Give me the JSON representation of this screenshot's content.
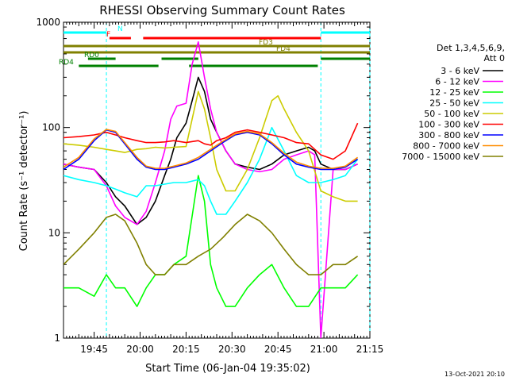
{
  "chart_data": {
    "type": "line",
    "title": "RHESSI Observing Summary Count Rates",
    "xlabel": "Start Time (06-Jan-04 19:35:02)",
    "ylabel": "Count Rate (s⁻¹ detector⁻¹)",
    "ylim": [
      1,
      1000
    ],
    "yscale": "log",
    "xlim_min": [
      0,
      100
    ],
    "x_ticks": [
      {
        "min": 10,
        "label": "19:45"
      },
      {
        "min": 25,
        "label": "20:00"
      },
      {
        "min": 40,
        "label": "20:15"
      },
      {
        "min": 55,
        "label": "20:30"
      },
      {
        "min": 70,
        "label": "20:45"
      },
      {
        "min": 85,
        "label": "21:00"
      },
      {
        "min": 100,
        "label": "21:15"
      }
    ],
    "y_ticks": [
      {
        "value": 1,
        "label": "1"
      },
      {
        "value": 10,
        "label": "10"
      },
      {
        "value": 100,
        "label": "100"
      },
      {
        "value": 1000,
        "label": "1000"
      }
    ],
    "legend_header": [
      "Det 1,3,4,5,6,9,",
      "Att 0"
    ],
    "legend_position": "top-right",
    "series": [
      {
        "name": "3 - 6 keV",
        "color": "#000000",
        "x": [
          0,
          5,
          10,
          14,
          17,
          20,
          24,
          27,
          30,
          33,
          35,
          37,
          40,
          42,
          44,
          46,
          48,
          50,
          53,
          56,
          60,
          64,
          68,
          72,
          76,
          80,
          82,
          84,
          88,
          92,
          96
        ],
        "values": [
          45,
          42,
          40,
          30,
          22,
          18,
          12,
          14,
          20,
          35,
          50,
          80,
          110,
          180,
          300,
          220,
          120,
          90,
          60,
          45,
          42,
          40,
          45,
          55,
          60,
          65,
          60,
          45,
          40,
          40,
          45
        ]
      },
      {
        "name": "6 - 12 keV",
        "color": "#ff00ff",
        "x": [
          0,
          5,
          10,
          14,
          17,
          20,
          24,
          27,
          30,
          33,
          35,
          37,
          40,
          42,
          44,
          46,
          48,
          50,
          53,
          56,
          60,
          64,
          68,
          72,
          76,
          80,
          82,
          84,
          88,
          92,
          96
        ],
        "values": [
          45,
          42,
          40,
          28,
          18,
          14,
          12,
          16,
          30,
          60,
          120,
          160,
          170,
          400,
          650,
          300,
          150,
          90,
          60,
          45,
          40,
          38,
          40,
          50,
          55,
          60,
          55,
          1,
          40,
          40,
          45
        ]
      },
      {
        "name": "12 - 25 keV",
        "color": "#00ff00",
        "x": [
          0,
          5,
          10,
          14,
          17,
          20,
          24,
          27,
          30,
          33,
          36,
          40,
          44,
          46,
          48,
          50,
          53,
          56,
          60,
          64,
          68,
          72,
          76,
          80,
          84,
          88,
          92,
          96
        ],
        "values": [
          3,
          3,
          2.5,
          4,
          3,
          3,
          2,
          3,
          4,
          4,
          5,
          6,
          35,
          20,
          5,
          3,
          2,
          2,
          3,
          4,
          5,
          3,
          2,
          2,
          3,
          3,
          3,
          4
        ]
      },
      {
        "name": "25 - 50 keV",
        "color": "#00ffff",
        "x": [
          0,
          5,
          10,
          14,
          17,
          20,
          24,
          27,
          30,
          33,
          36,
          40,
          44,
          46,
          48,
          50,
          53,
          56,
          60,
          64,
          68,
          72,
          76,
          80,
          84,
          88,
          92,
          96
        ],
        "values": [
          35,
          32,
          30,
          28,
          26,
          24,
          22,
          28,
          28,
          29,
          30,
          30,
          32,
          28,
          20,
          15,
          15,
          20,
          30,
          50,
          100,
          60,
          35,
          30,
          30,
          32,
          35,
          50
        ]
      },
      {
        "name": "50 - 100 keV",
        "color": "#cccc00",
        "x": [
          0,
          5,
          10,
          14,
          17,
          20,
          24,
          27,
          30,
          33,
          36,
          40,
          44,
          46,
          48,
          50,
          53,
          56,
          60,
          64,
          68,
          70,
          72,
          76,
          80,
          84,
          88,
          92,
          96
        ],
        "values": [
          70,
          68,
          65,
          62,
          60,
          58,
          62,
          63,
          65,
          64,
          65,
          66,
          220,
          150,
          80,
          40,
          25,
          25,
          40,
          80,
          180,
          200,
          150,
          90,
          60,
          25,
          22,
          20,
          20
        ]
      },
      {
        "name": "100 - 300 keV",
        "color": "#ff0000",
        "x": [
          0,
          5,
          10,
          14,
          17,
          20,
          24,
          27,
          30,
          33,
          36,
          40,
          44,
          46,
          48,
          50,
          53,
          56,
          60,
          64,
          68,
          72,
          76,
          80,
          84,
          88,
          92,
          96
        ],
        "values": [
          80,
          82,
          85,
          90,
          85,
          80,
          75,
          72,
          72,
          73,
          75,
          72,
          75,
          70,
          68,
          75,
          80,
          90,
          95,
          90,
          85,
          80,
          72,
          70,
          55,
          50,
          60,
          110
        ]
      },
      {
        "name": "300 - 800 keV",
        "color": "#0000ff",
        "x": [
          0,
          5,
          10,
          14,
          17,
          20,
          24,
          27,
          30,
          33,
          36,
          40,
          44,
          48,
          52,
          56,
          60,
          64,
          68,
          72,
          76,
          80,
          84,
          88,
          92,
          96
        ],
        "values": [
          40,
          50,
          75,
          95,
          90,
          70,
          50,
          42,
          40,
          40,
          42,
          45,
          50,
          60,
          72,
          85,
          90,
          85,
          70,
          55,
          45,
          42,
          40,
          40,
          42,
          50
        ]
      },
      {
        "name": "800 - 7000 keV",
        "color": "#ff8c00",
        "x": [
          0,
          5,
          10,
          14,
          17,
          20,
          24,
          27,
          30,
          33,
          36,
          40,
          44,
          48,
          52,
          56,
          60,
          64,
          68,
          72,
          76,
          80,
          84,
          88,
          92,
          96
        ],
        "values": [
          42,
          52,
          78,
          96,
          92,
          72,
          52,
          43,
          41,
          41,
          43,
          46,
          52,
          62,
          74,
          87,
          92,
          87,
          72,
          57,
          47,
          43,
          41,
          41,
          43,
          52
        ]
      },
      {
        "name": "7000 - 15000 keV",
        "color": "#808000",
        "x": [
          0,
          5,
          10,
          14,
          17,
          20,
          24,
          27,
          30,
          33,
          36,
          40,
          44,
          48,
          52,
          56,
          60,
          64,
          68,
          72,
          76,
          80,
          84,
          88,
          92,
          96
        ],
        "values": [
          5,
          7,
          10,
          14,
          15,
          13,
          8,
          5,
          4,
          4,
          5,
          5,
          6,
          7,
          9,
          12,
          15,
          13,
          10,
          7,
          5,
          4,
          4,
          5,
          5,
          6
        ]
      }
    ],
    "flags": [
      {
        "label": "N",
        "color": "#00ffff",
        "segments": [
          [
            0,
            14
          ],
          [
            84,
            100
          ]
        ]
      },
      {
        "label": "F",
        "color": "#ff0000",
        "segments": [
          [
            15,
            22
          ],
          [
            26,
            84
          ]
        ]
      },
      {
        "label": "FD3",
        "color": "#808000",
        "segments": [
          [
            0,
            100
          ]
        ]
      },
      {
        "label": "FD4",
        "color": "#808000",
        "segments": [
          [
            0,
            100
          ]
        ]
      },
      {
        "label": "RD0",
        "color": "#008000",
        "segments": [
          [
            8,
            17
          ],
          [
            32,
            44
          ],
          [
            84,
            100
          ]
        ]
      },
      {
        "label": "RD4",
        "color": "#008000",
        "segments": [
          [
            5,
            31
          ],
          [
            41,
            83
          ]
        ]
      }
    ],
    "footer_date": "13-Oct-2021 20:10"
  }
}
